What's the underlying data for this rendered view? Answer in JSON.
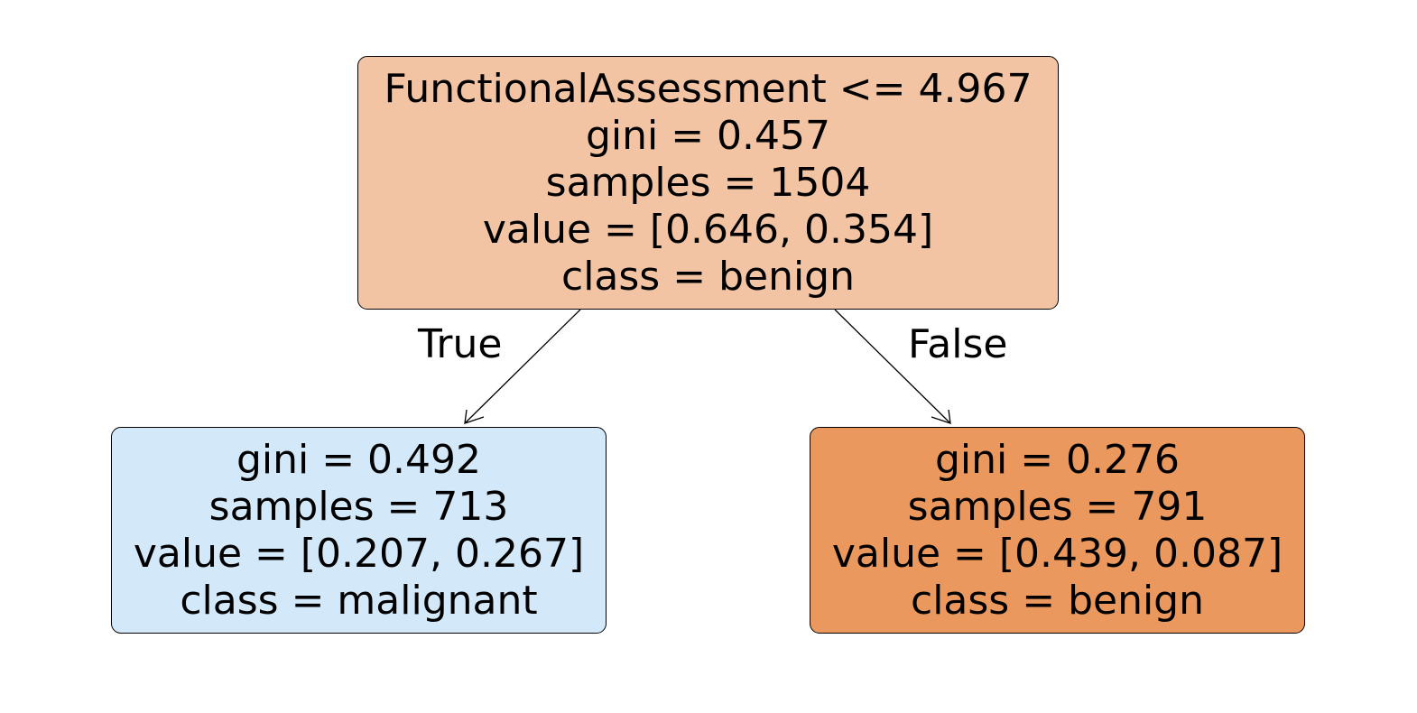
{
  "tree": {
    "root": {
      "split": "FunctionalAssessment <= 4.967",
      "gini": "gini = 0.457",
      "samples": "samples = 1504",
      "value": "value = [0.646, 0.354]",
      "class": "class = benign",
      "fill": "#f3c4a3"
    },
    "left": {
      "gini": "gini = 0.492",
      "samples": "samples = 713",
      "value": "value = [0.207, 0.267]",
      "class": "class = malignant",
      "fill": "#d3e8f8"
    },
    "right": {
      "gini": "gini = 0.276",
      "samples": "samples = 791",
      "value": "value = [0.439, 0.087]",
      "class": "class = benign",
      "fill": "#ea985d"
    }
  },
  "edges": {
    "true_label": "True",
    "false_label": "False"
  }
}
